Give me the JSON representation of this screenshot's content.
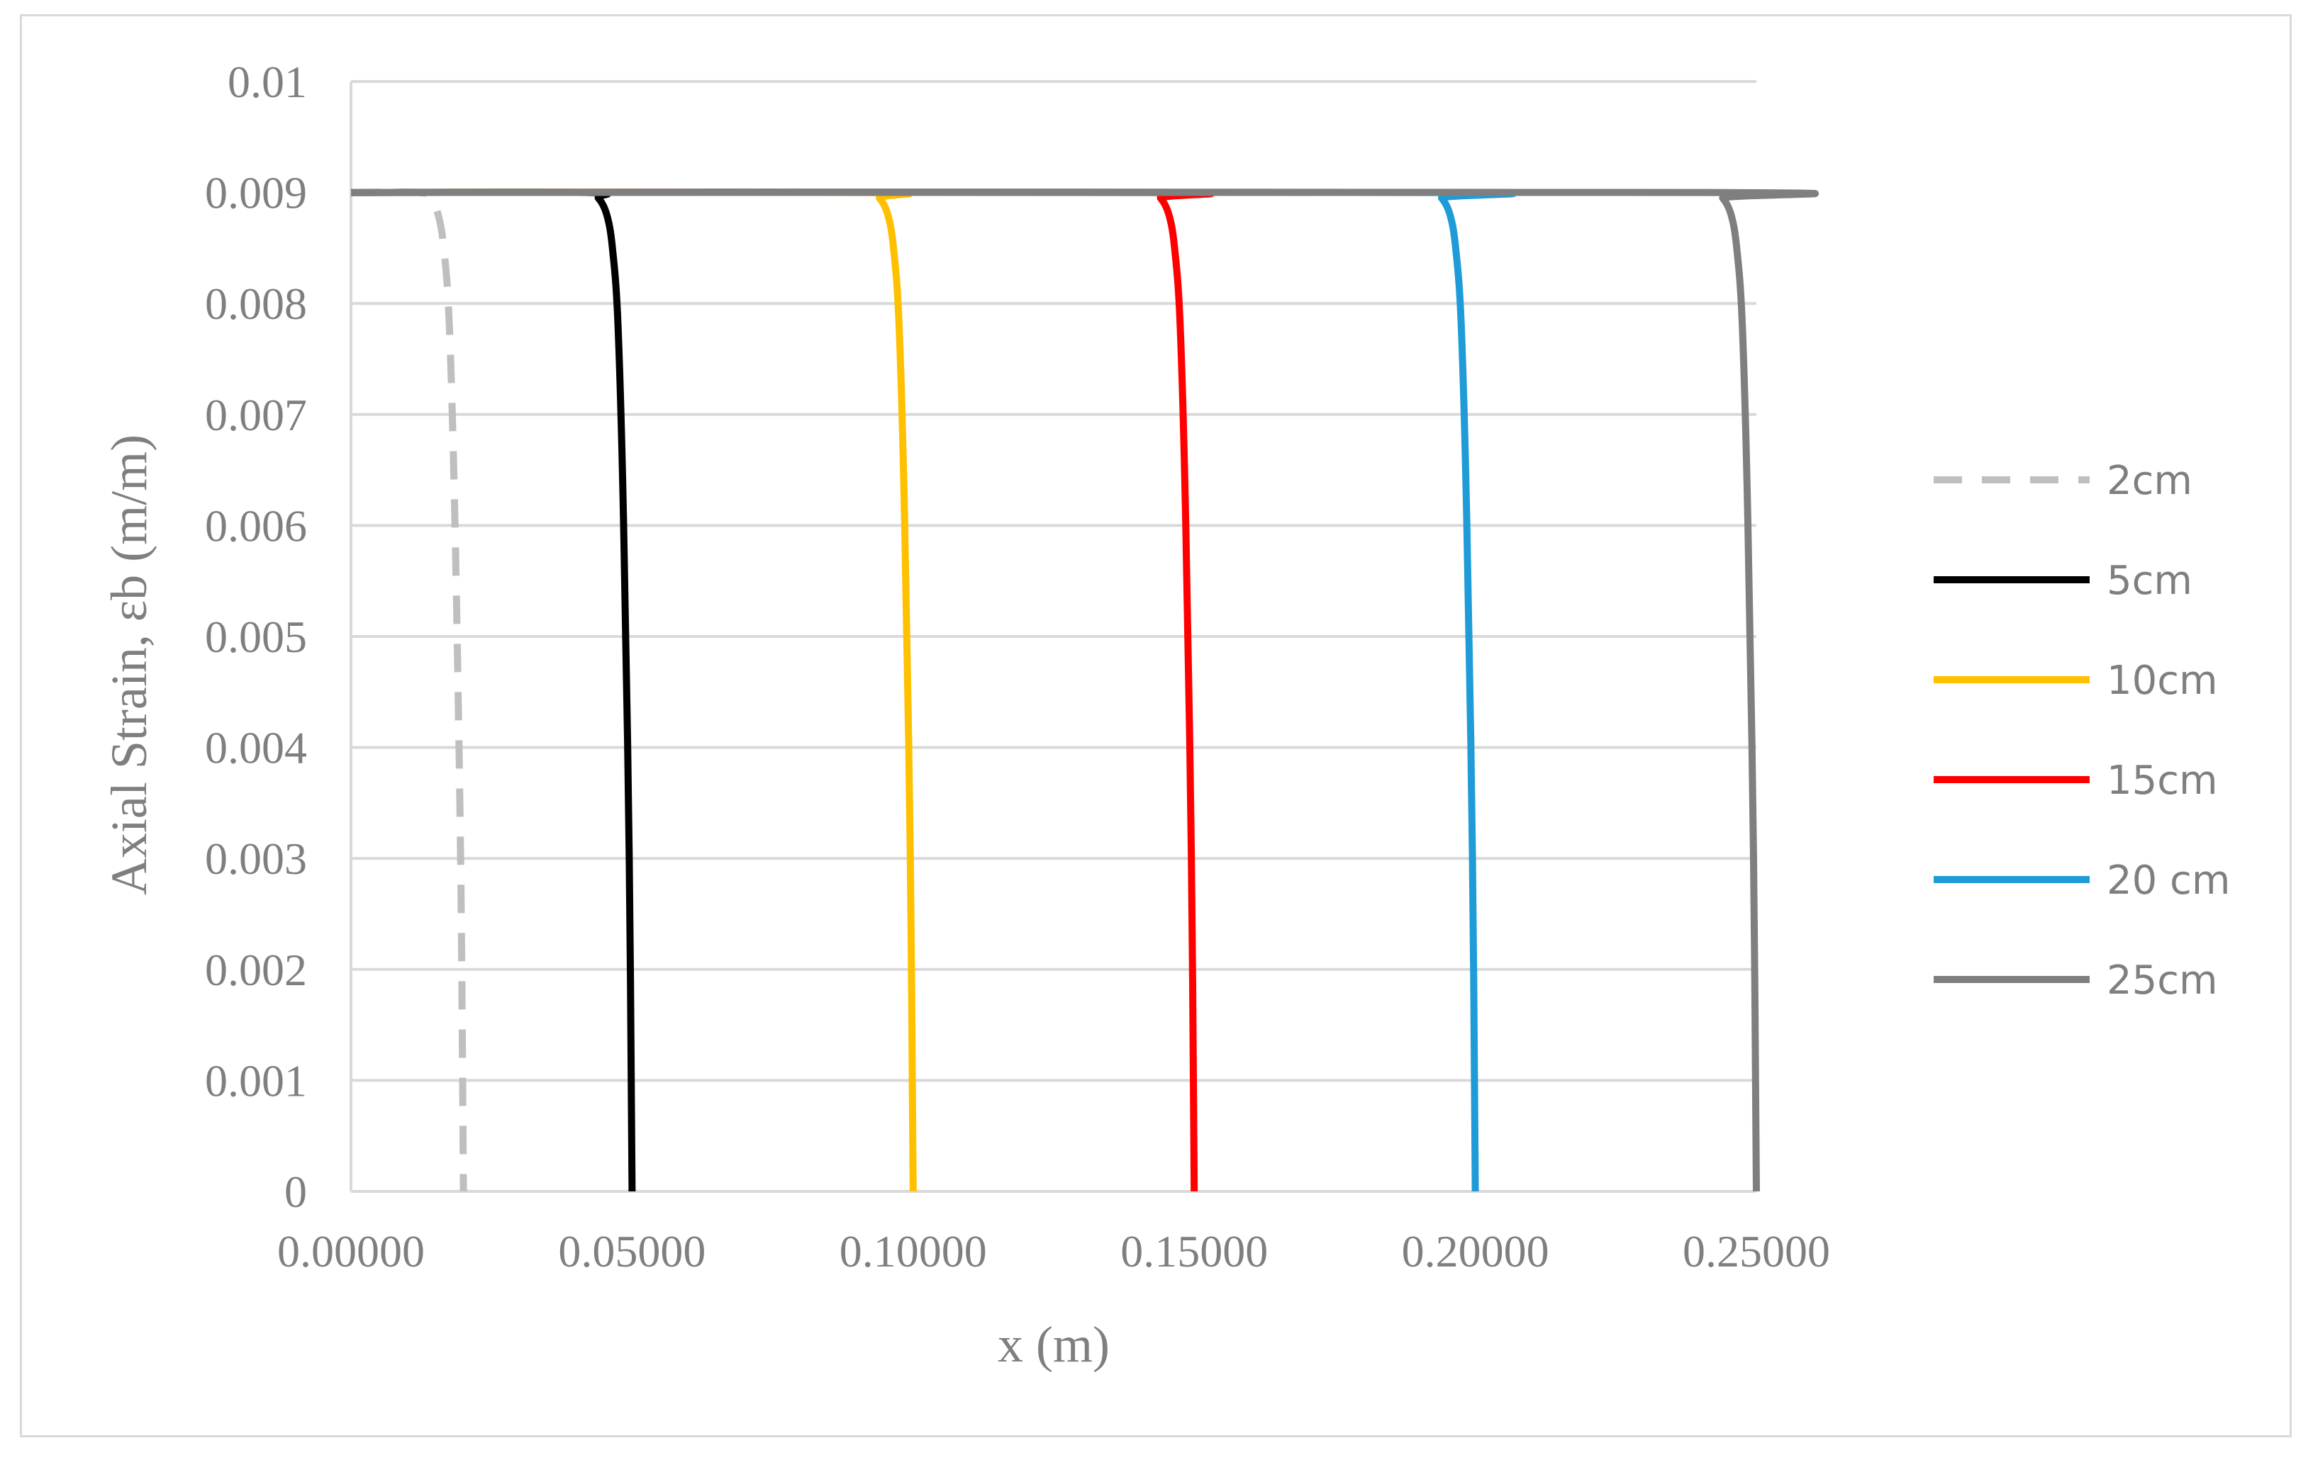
{
  "chart_data": {
    "type": "line",
    "title": "",
    "xlabel": "x (m)",
    "ylabel": "Axial Strain, εb (m/m)",
    "xlim": [
      0,
      0.25
    ],
    "ylim": [
      0,
      0.01
    ],
    "x_ticks": [
      "0.00000",
      "0.05000",
      "0.10000",
      "0.15000",
      "0.20000",
      "0.25000"
    ],
    "y_ticks": [
      "0",
      "0.001",
      "0.002",
      "0.003",
      "0.004",
      "0.005",
      "0.006",
      "0.007",
      "0.008",
      "0.009",
      "0.01"
    ],
    "grid": "horizontal",
    "legend_position": "right",
    "series": [
      {
        "name": "2cm",
        "color": "#bfbfbf",
        "dash": true,
        "x": [
          0,
          0.012,
          0.014,
          0.0155,
          0.0165,
          0.0175,
          0.0185,
          0.0195,
          0.02
        ],
        "y": [
          0.009,
          0.009,
          0.00895,
          0.0088,
          0.0085,
          0.0078,
          0.006,
          0.003,
          0
        ]
      },
      {
        "name": "5cm",
        "color": "#000000",
        "dash": false,
        "x": [
          0,
          0.042,
          0.044,
          0.0455,
          0.0465,
          0.0475,
          0.0485,
          0.0495,
          0.05
        ],
        "y": [
          0.009,
          0.009,
          0.00895,
          0.0088,
          0.0085,
          0.0078,
          0.006,
          0.003,
          0
        ]
      },
      {
        "name": "10cm",
        "color": "#ffc000",
        "dash": false,
        "x": [
          0,
          0.092,
          0.094,
          0.0955,
          0.0965,
          0.0975,
          0.0985,
          0.0995,
          0.1
        ],
        "y": [
          0.009,
          0.009,
          0.00895,
          0.0088,
          0.0085,
          0.0078,
          0.006,
          0.003,
          0
        ]
      },
      {
        "name": "15cm",
        "color": "#ff0000",
        "dash": false,
        "x": [
          0,
          0.142,
          0.144,
          0.1455,
          0.1465,
          0.1475,
          0.1485,
          0.1495,
          0.15
        ],
        "y": [
          0.009,
          0.009,
          0.00895,
          0.0088,
          0.0085,
          0.0078,
          0.006,
          0.003,
          0
        ]
      },
      {
        "name": "20 cm",
        "color": "#1f9bd7",
        "dash": false,
        "x": [
          0,
          0.192,
          0.194,
          0.1955,
          0.1965,
          0.1975,
          0.1985,
          0.1995,
          0.2
        ],
        "y": [
          0.009,
          0.009,
          0.00895,
          0.0088,
          0.0085,
          0.0078,
          0.006,
          0.003,
          0
        ]
      },
      {
        "name": "25cm",
        "color": "#7f7f7f",
        "dash": false,
        "x": [
          0,
          0.242,
          0.244,
          0.2455,
          0.2465,
          0.2475,
          0.2485,
          0.2495,
          0.25
        ],
        "y": [
          0.009,
          0.009,
          0.00895,
          0.0088,
          0.0085,
          0.0078,
          0.006,
          0.003,
          0
        ]
      }
    ]
  }
}
